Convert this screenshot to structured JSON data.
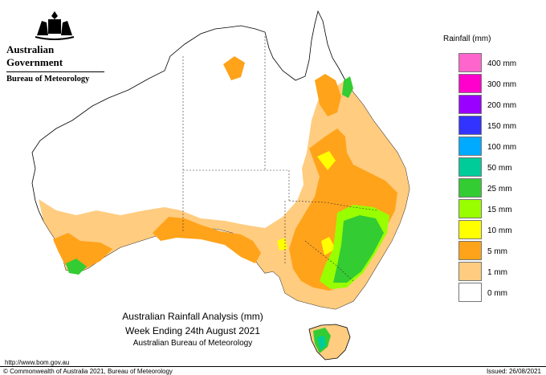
{
  "header": {
    "government": "Australian Government",
    "bureau": "Bureau of Meteorology"
  },
  "legend": {
    "title": "Rainfall (mm)",
    "items": [
      {
        "label": "400 mm",
        "color": "#ff66cc"
      },
      {
        "label": "300 mm",
        "color": "#ff00cc"
      },
      {
        "label": "200 mm",
        "color": "#9900ff"
      },
      {
        "label": "150 mm",
        "color": "#3333ff"
      },
      {
        "label": "100 mm",
        "color": "#00aaff"
      },
      {
        "label": "50 mm",
        "color": "#00cc99"
      },
      {
        "label": "25 mm",
        "color": "#33cc33"
      },
      {
        "label": "15 mm",
        "color": "#99ff00"
      },
      {
        "label": "10 mm",
        "color": "#ffff00"
      },
      {
        "label": "5 mm",
        "color": "#ffa31a"
      },
      {
        "label": "1 mm",
        "color": "#ffcc80"
      },
      {
        "label": "0 mm",
        "color": "#ffffff"
      }
    ]
  },
  "caption": {
    "line1": "Australian Rainfall Analysis (mm)",
    "line2": "Week Ending 24th August 2021",
    "line3": "Australian Bureau of Meteorology"
  },
  "footer": {
    "url": "http://www.bom.gov.au",
    "copyright": "© Commonwealth of Australia 2021, Bureau of Meteorology",
    "issued": "Issued: 26/08/2021"
  }
}
